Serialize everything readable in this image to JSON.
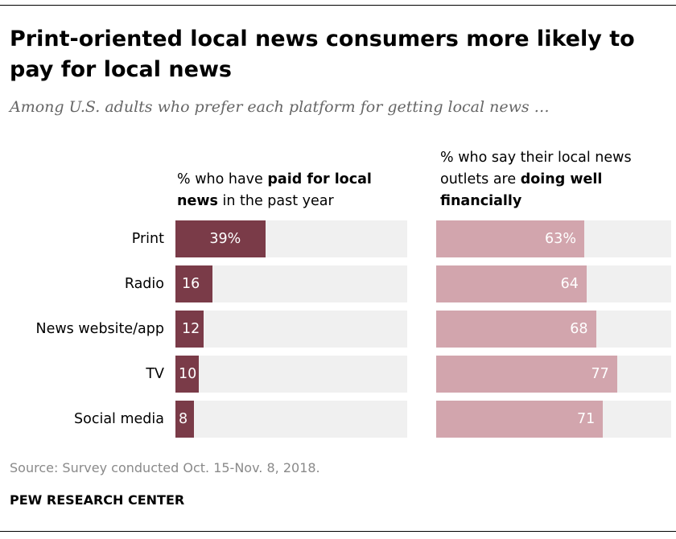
{
  "title": "Print-oriented local news consumers more likely to pay for local news",
  "subtitle": "Among U.S. adults who prefer each platform for getting local news …",
  "panels": {
    "left": {
      "prefix": "% who have ",
      "bold": "paid for local news",
      "suffix": " in the past year"
    },
    "right": {
      "prefix": "% who say their local news outlets are ",
      "bold": "doing well financially",
      "suffix": ""
    }
  },
  "colors": {
    "left_bar": "#7a3b48",
    "right_bar": "#d2a5ad",
    "track": "#f0f0f0"
  },
  "chart_data": {
    "type": "bar",
    "orientation": "horizontal",
    "categories": [
      "Print",
      "Radio",
      "News website/app",
      "TV",
      "Social media"
    ],
    "series": [
      {
        "name": "% who have paid for local news in the past year",
        "values": [
          39,
          16,
          12,
          10,
          8
        ],
        "labels": [
          "39%",
          "16",
          "12",
          "10",
          "8"
        ]
      },
      {
        "name": "% who say their local news outlets are doing well financially",
        "values": [
          63,
          64,
          68,
          77,
          71
        ],
        "labels": [
          "63%",
          "64",
          "68",
          "77",
          "71"
        ]
      }
    ],
    "xlim": [
      0,
      100
    ],
    "grid": false,
    "legend": "none"
  },
  "footer": {
    "source": "Source: Survey conducted Oct. 15-Nov. 8, 2018.",
    "credit": "PEW RESEARCH CENTER"
  }
}
